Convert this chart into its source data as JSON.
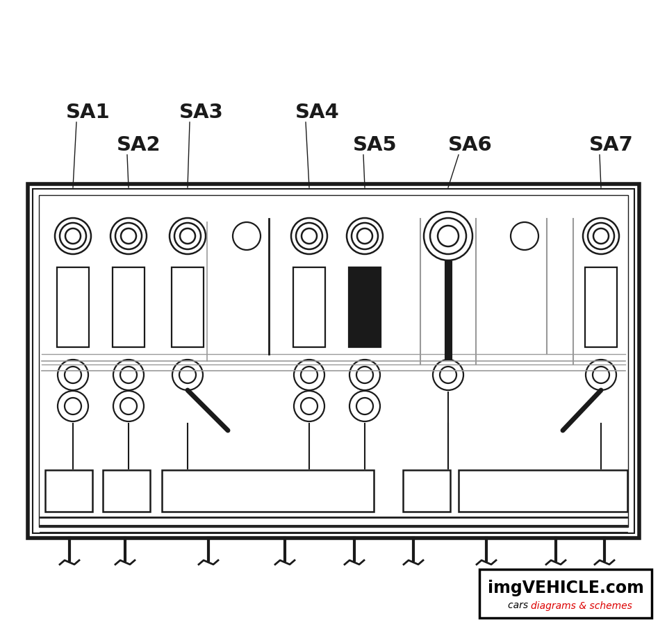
{
  "bg_color": "#ffffff",
  "line_color": "#1a1a1a",
  "gray_color": "#999999",
  "watermark_text1": "imgVEHICLE.com",
  "watermark_red": "#dd0000",
  "watermark_black": "#000000",
  "labels": [
    "SA1",
    "SA2",
    "SA3",
    "SA4",
    "SA5",
    "SA6",
    "SA7"
  ],
  "fig_w": 9.6,
  "fig_h": 9.06,
  "dpi": 100
}
